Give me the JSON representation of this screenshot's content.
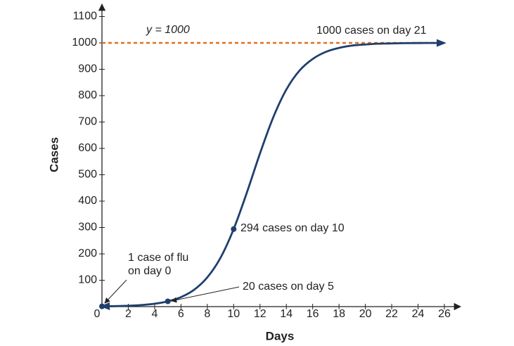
{
  "chart_data": {
    "type": "line",
    "x_label": "Days",
    "y_label": "Cases",
    "x": [
      0,
      1,
      2,
      3,
      4,
      5,
      6,
      7,
      8,
      9,
      10,
      11,
      12,
      13,
      14,
      15,
      16,
      17,
      18,
      19,
      20,
      21,
      22,
      23,
      24,
      25,
      26
    ],
    "series": [
      {
        "color": "#1f3f6e",
        "values": [
          1,
          1.8,
          3.3,
          6.1,
          11,
          20,
          36,
          64,
          111,
          185,
          294,
          432,
          581,
          717,
          823,
          895,
          939,
          966,
          981,
          990,
          994,
          997,
          998,
          999,
          999.5,
          999.7,
          999.8
        ]
      }
    ],
    "points": {
      "color": "#1f3f6e",
      "x": [
        0,
        5,
        10
      ],
      "values": [
        1,
        20,
        294
      ]
    },
    "asymptote": {
      "value": 1000,
      "label": "y = 1000",
      "color": "#e07020"
    },
    "annotations": [
      [
        "1 case of flu",
        "on day 0"
      ],
      [
        "20 cases on day 5"
      ],
      [
        "294 cases on day 10"
      ],
      [
        "1000 cases on day 21"
      ]
    ],
    "xlim": [
      0,
      27.5
    ],
    "ylim": [
      0,
      1175
    ],
    "xticks": [
      0,
      2,
      4,
      6,
      8,
      10,
      12,
      14,
      16,
      18,
      20,
      22,
      24,
      26
    ],
    "yticks": [
      100,
      200,
      300,
      400,
      500,
      600,
      700,
      800,
      900,
      1000,
      1100
    ]
  }
}
